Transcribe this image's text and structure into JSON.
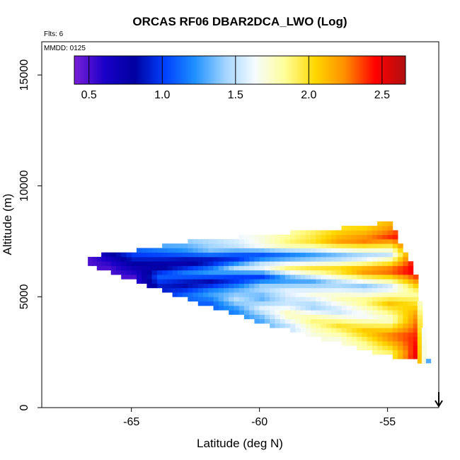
{
  "chart_data": {
    "type": "heatmap",
    "title": "ORCAS RF06 DBAR2DCA_LWO (Log)",
    "annotations": [
      "Flts: 6",
      "MMDD: 0125"
    ],
    "xlabel": "Latitude (deg N)",
    "ylabel": "Altitude (m)",
    "xlim": [
      -68.5,
      -53.0
    ],
    "ylim": [
      0,
      16500
    ],
    "x_ticks": [
      -65,
      -60,
      -55
    ],
    "x_tick_labels": [
      "-65",
      "-60",
      "-55"
    ],
    "y_ticks": [
      0,
      5000,
      10000,
      15000
    ],
    "y_tick_labels": [
      "0",
      "5000",
      "10000",
      "15000"
    ],
    "colorbar": {
      "min": 0.4,
      "max": 2.66,
      "ticks": [
        0.5,
        1.0,
        1.5,
        2.0,
        2.5
      ],
      "tick_labels": [
        "0.5",
        "1.0",
        "1.5",
        "2.0",
        "2.5"
      ],
      "colors": [
        "#7a1fd6",
        "#1a00c8",
        "#0000a0",
        "#0040ff",
        "#1e90ff",
        "#a0d4ff",
        "#f5fbff",
        "#ffff99",
        "#ffd700",
        "#ff8c00",
        "#ff0000",
        "#b01010"
      ]
    },
    "cell_size": {
      "dx": 0.2,
      "dz": 200
    },
    "cross_section_columns": [
      {
        "lat": -66.7,
        "z_bottom": 6500,
        "z_top": 6700,
        "values": [
          0.5
        ]
      },
      {
        "lat": -66.0,
        "z_bottom": 6200,
        "z_top": 6900,
        "values": [
          0.5,
          0.6,
          0.8
        ]
      },
      {
        "lat": -65.0,
        "z_bottom": 5800,
        "z_top": 7000,
        "values": [
          0.5,
          0.7,
          0.9,
          1.1
        ]
      },
      {
        "lat": -64.0,
        "z_bottom": 5400,
        "z_top": 7200,
        "values": [
          0.9,
          1.1,
          0.7,
          1.0,
          1.3
        ]
      },
      {
        "lat": -63.0,
        "z_bottom": 5000,
        "z_top": 7400,
        "values": [
          1.1,
          0.8,
          1.2,
          0.7,
          1.2,
          1.4
        ]
      },
      {
        "lat": -62.0,
        "z_bottom": 4600,
        "z_top": 7500,
        "values": [
          1.1,
          1.3,
          0.8,
          1.3,
          0.8,
          1.4,
          1.5
        ]
      },
      {
        "lat": -61.0,
        "z_bottom": 4300,
        "z_top": 7600,
        "values": [
          1.2,
          1.5,
          1.3,
          0.9,
          1.5,
          0.9,
          1.5,
          1.6
        ]
      },
      {
        "lat": -60.0,
        "z_bottom": 3900,
        "z_top": 7700,
        "values": [
          1.3,
          1.6,
          1.3,
          1.5,
          1.0,
          1.7,
          1.0,
          1.7,
          1.7
        ]
      },
      {
        "lat": -59.0,
        "z_bottom": 3600,
        "z_top": 7800,
        "values": [
          1.5,
          1.8,
          1.5,
          1.6,
          1.2,
          1.9,
          1.1,
          1.9,
          1.8
        ]
      },
      {
        "lat": -58.0,
        "z_bottom": 3300,
        "z_top": 7900,
        "values": [
          1.7,
          1.9,
          1.4,
          1.7,
          1.3,
          2.0,
          1.2,
          2.0,
          1.9
        ]
      },
      {
        "lat": -57.0,
        "z_bottom": 3000,
        "z_top": 8000,
        "values": [
          1.7,
          2.0,
          1.5,
          1.8,
          1.4,
          2.1,
          1.3,
          2.2,
          2.0
        ]
      },
      {
        "lat": -56.0,
        "z_bottom": 2700,
        "z_top": 8100,
        "values": [
          1.8,
          2.1,
          1.6,
          1.9,
          1.4,
          2.3,
          1.4,
          2.3,
          2.0
        ]
      },
      {
        "lat": -55.0,
        "z_bottom": 2400,
        "z_top": 8300,
        "values": [
          1.9,
          2.3,
          1.7,
          2.1,
          1.5,
          2.4,
          1.5,
          2.4,
          2.1
        ]
      },
      {
        "lat": -54.0,
        "z_bottom": 2200,
        "z_top": 6000,
        "values": [
          2.5,
          2.4,
          2.2,
          1.8,
          2.5
        ]
      },
      {
        "lat": -53.5,
        "z_bottom": 2000,
        "z_top": 2200,
        "values": [
          1.3
        ]
      }
    ],
    "markers": [
      {
        "type": "arrow-down",
        "lat": -53.0,
        "z": 0
      }
    ]
  }
}
